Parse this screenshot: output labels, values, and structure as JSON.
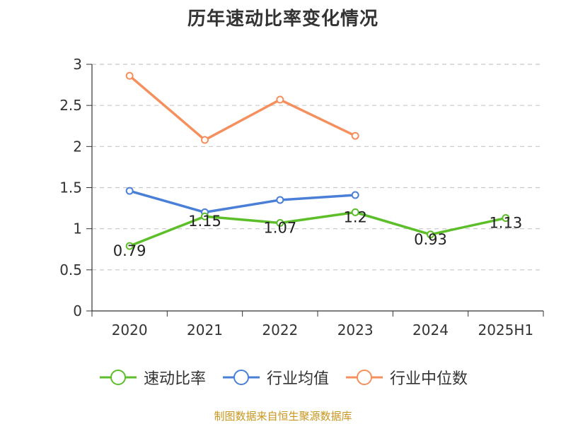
{
  "chart_data": {
    "type": "line",
    "title": "历年速动比率变化情况",
    "categories": [
      "2020",
      "2021",
      "2022",
      "2023",
      "2024",
      "2025H1"
    ],
    "ylim": [
      0,
      3
    ],
    "yticks": [
      "0",
      "0.5",
      "1",
      "1.5",
      "2",
      "2.5",
      "3"
    ],
    "grid": "horizontal dashed",
    "legend_position": "bottom",
    "series": [
      {
        "name": "速动比率",
        "color": "#5cbf2a",
        "values": [
          0.79,
          1.15,
          1.07,
          1.2,
          0.93,
          1.13
        ],
        "labels": [
          "0.79",
          "1.15",
          "1.07",
          "1.2",
          "0.93",
          "1.13"
        ]
      },
      {
        "name": "行业均值",
        "color": "#4a7fd8",
        "values": [
          1.46,
          1.2,
          1.35,
          1.41,
          null,
          null
        ]
      },
      {
        "name": "行业中位数",
        "color": "#f5905e",
        "values": [
          2.86,
          2.08,
          2.57,
          2.13,
          null,
          null
        ]
      }
    ]
  },
  "footer": {
    "source": "制图数据来自恒生聚源数据库"
  }
}
